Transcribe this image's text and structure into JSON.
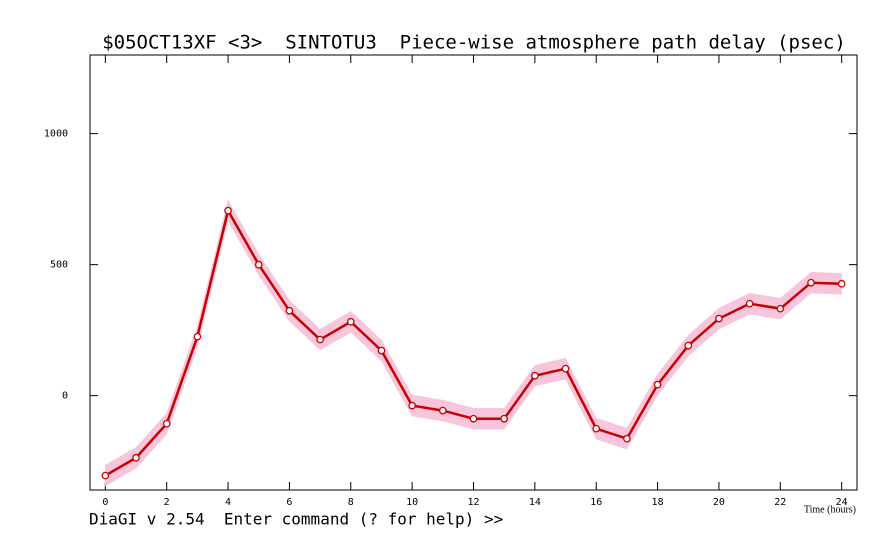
{
  "chart_data": {
    "type": "line",
    "title": "$05OCT13XF <3>  SINTOTU3  Piece-wise atmosphere path delay (psec)",
    "x_label": "Time (hours)",
    "status_line": "DiaGI v 2.54  Enter command (? for help) >>",
    "x": [
      0,
      1,
      2,
      3,
      4,
      5,
      6,
      7,
      8,
      9,
      10,
      11,
      12,
      13,
      14,
      15,
      16,
      17,
      18,
      19,
      20,
      21,
      22,
      23,
      24
    ],
    "series": [
      {
        "color": "#c80000",
        "band_color": "#f8c6dc",
        "values": [
          -305,
          -237,
          -107,
          225,
          706,
          500,
          324,
          214,
          282,
          172,
          -38,
          -57,
          -88,
          -88,
          76,
          103,
          -126,
          -164,
          42,
          191,
          294,
          351,
          332,
          431,
          427
        ],
        "errors": [
          40,
          40,
          40,
          40,
          40,
          40,
          40,
          40,
          40,
          40,
          40,
          40,
          40,
          40,
          40,
          40,
          40,
          40,
          40,
          40,
          40,
          40,
          40,
          40,
          40
        ]
      }
    ],
    "xlim": [
      -0.5,
      24.5
    ],
    "ylim": [
      -360,
      1300
    ],
    "xticks": [
      0,
      2,
      4,
      6,
      8,
      10,
      12,
      14,
      16,
      18,
      20,
      22,
      24
    ],
    "yticks": [
      0,
      500,
      1000
    ],
    "grid": false
  }
}
